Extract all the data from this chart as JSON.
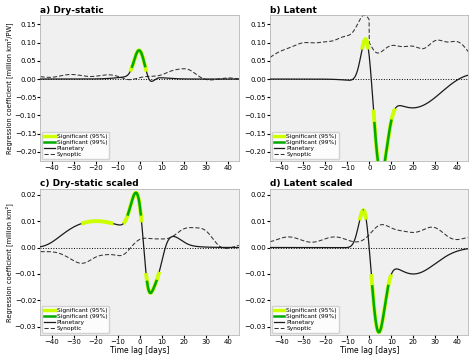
{
  "subplot_titles": [
    "a) Dry-static",
    "b) Latent",
    "c) Dry-static scaled",
    "d) Latent scaled"
  ],
  "ylabel_top": "Regression coefficient [million km²/PW]",
  "ylabel_bottom": "Regression coefficient [million km²]",
  "xlabel": "Time lag [days]",
  "xlim": [
    -45,
    45
  ],
  "xticks": [
    -40,
    -30,
    -20,
    -10,
    0,
    10,
    20,
    30,
    40
  ],
  "ylim_a": [
    -0.225,
    0.175
  ],
  "ylim_b": [
    -0.225,
    0.175
  ],
  "ylim_c": [
    -0.033,
    0.022
  ],
  "ylim_d": [
    -0.033,
    0.022
  ],
  "yticks_ab": [
    -0.2,
    -0.15,
    -0.1,
    -0.05,
    0.0,
    0.05,
    0.1,
    0.15
  ],
  "yticks_cd": [
    -0.03,
    -0.02,
    -0.01,
    0.0,
    0.01,
    0.02
  ],
  "color_sig95": "#ccff00",
  "color_sig99": "#00aa00",
  "color_planetary": "#1a1a1a",
  "color_synoptic": "#333333",
  "legend_labels": [
    "Significant (95%)",
    "Significant (99%)",
    "Planetary",
    "Synoptic"
  ],
  "bg_color": "#f0f0f0"
}
